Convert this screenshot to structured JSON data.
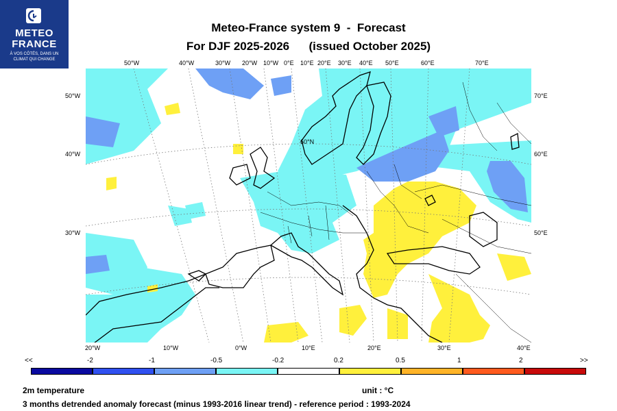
{
  "logo": {
    "line1": "METEO",
    "line2": "FRANCE",
    "tagline1": "À VOS CÔTÉS, DANS UN",
    "tagline2": "CLIMAT QUI CHANGE",
    "color": "#1a3a8a",
    "icon": "meteo-france-logo-icon"
  },
  "title": {
    "line1": "Meteo-France system 9  -  Forecast",
    "line2": "For DJF 2025-2026      (issued October 2025)"
  },
  "map": {
    "projection": "Lambert conformal, Europe / North Atlantic",
    "region_text": "60°N",
    "top_labels": [
      "50°W",
      "40°W",
      "30°W",
      "20°W",
      "10°W",
      "0°E",
      "10°E",
      "20°E",
      "30°E",
      "40°E",
      "50°E",
      "60°E",
      "70°E"
    ],
    "bottom_labels": [
      "20°W",
      "10°W",
      "0°W",
      "10°E",
      "20°E",
      "30°E",
      "40°E"
    ],
    "left_labels": [
      "50°W",
      "40°W",
      "30°W"
    ],
    "right_labels": [
      "70°E",
      "60°E",
      "50°E"
    ],
    "gridlines": true,
    "coastlines": true,
    "country_borders": true
  },
  "colorbar": {
    "labels": [
      "<<",
      "-2",
      "-1",
      "-0.5",
      "-0.2",
      "0.2",
      "0.5",
      "1",
      "2",
      ">>"
    ],
    "colors": [
      "#0a0aa0",
      "#3050f0",
      "#6ea0f5",
      "#7af5f5",
      "#ffffff",
      "#fff03c",
      "#ffb428",
      "#ff5a1e",
      "#c80a0a"
    ]
  },
  "legend": {
    "variable": "2m temperature",
    "unit": "unit : °C",
    "description": "3 months detrended anomaly forecast (minus 1993-2016 linear trend) - reference period : 1993-2024"
  }
}
